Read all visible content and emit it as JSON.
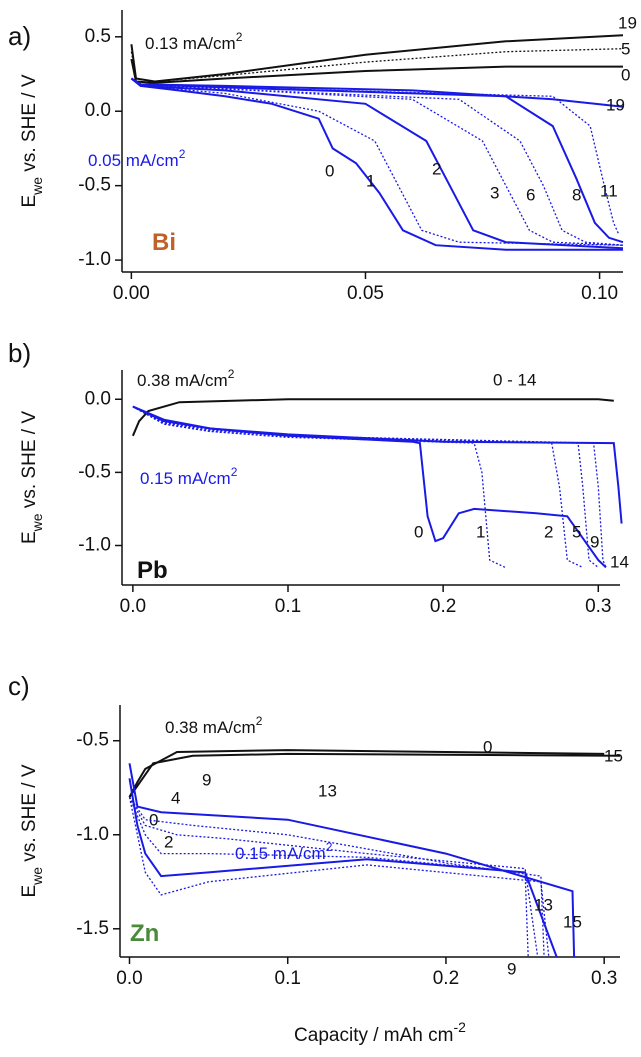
{
  "chart_data": [
    {
      "type": "line",
      "panel": "a)",
      "ylabel": [
        "E",
        "we",
        " vs. SHE / V"
      ],
      "xlim": [
        -0.002,
        0.105
      ],
      "ylim": [
        -1.08,
        0.68
      ],
      "xticks": [
        {
          "value": 0,
          "label": "0.00"
        },
        0.05,
        {
          "value": 0.1,
          "label": "0.10"
        }
      ],
      "yticks": [
        0.5,
        {
          "value": 0,
          "label": "0.0"
        },
        -0.5,
        {
          "value": -1,
          "label": "-1.0"
        }
      ],
      "annotations": [
        {
          "text": "0.13 mA/cm",
          "sup": "2",
          "color": "#111111"
        },
        {
          "text": "0.05 mA/cm",
          "sup": "2",
          "color": "#1a1ae6"
        },
        {
          "text": "Bi",
          "color": "#c0602a"
        }
      ],
      "series": [
        {
          "name": "19",
          "color": "#111111",
          "style": "solid",
          "x": [
            0,
            0.001,
            0.005,
            0.02,
            0.05,
            0.08,
            0.105
          ],
          "values": [
            0.45,
            0.22,
            0.2,
            0.25,
            0.38,
            0.47,
            0.51
          ]
        },
        {
          "name": "5",
          "color": "#111111",
          "style": "dotted",
          "x": [
            0,
            0.001,
            0.005,
            0.02,
            0.05,
            0.08,
            0.105
          ],
          "values": [
            0.4,
            0.22,
            0.2,
            0.24,
            0.33,
            0.4,
            0.42
          ]
        },
        {
          "name": "0",
          "color": "#111111",
          "style": "solid",
          "x": [
            0,
            0.001,
            0.005,
            0.02,
            0.05,
            0.08,
            0.105
          ],
          "values": [
            0.35,
            0.2,
            0.19,
            0.22,
            0.27,
            0.3,
            0.3
          ]
        },
        {
          "name": "0",
          "color": "#1a1ae6",
          "style": "solid",
          "x": [
            0,
            0.002,
            0.01,
            0.02,
            0.03,
            0.04,
            0.043,
            0.048,
            0.053,
            0.058,
            0.065,
            0.08,
            0.105
          ],
          "values": [
            0.22,
            0.17,
            0.14,
            0.1,
            0.05,
            -0.05,
            -0.25,
            -0.35,
            -0.55,
            -0.8,
            -0.9,
            -0.93,
            -0.93
          ]
        },
        {
          "name": "1",
          "color": "#1a1ae6",
          "style": "dotted",
          "x": [
            0,
            0.002,
            0.02,
            0.04,
            0.052,
            0.057,
            0.062,
            0.07,
            0.105
          ],
          "values": [
            0.22,
            0.17,
            0.12,
            0.0,
            -0.2,
            -0.5,
            -0.8,
            -0.88,
            -0.9
          ]
        },
        {
          "name": "2",
          "color": "#1a1ae6",
          "style": "solid",
          "x": [
            0,
            0.002,
            0.02,
            0.05,
            0.063,
            0.068,
            0.073,
            0.08,
            0.105
          ],
          "values": [
            0.22,
            0.17,
            0.14,
            0.05,
            -0.2,
            -0.5,
            -0.8,
            -0.88,
            -0.92
          ]
        },
        {
          "name": "3",
          "color": "#1a1ae6",
          "style": "dotted",
          "x": [
            0,
            0.002,
            0.02,
            0.06,
            0.075,
            0.08,
            0.085,
            0.09,
            0.105
          ],
          "values": [
            0.22,
            0.18,
            0.15,
            0.08,
            -0.2,
            -0.5,
            -0.8,
            -0.88,
            -0.9
          ]
        },
        {
          "name": "6",
          "color": "#1a1ae6",
          "style": "dotted",
          "x": [
            0,
            0.002,
            0.02,
            0.07,
            0.083,
            0.088,
            0.092,
            0.097,
            0.105
          ],
          "values": [
            0.22,
            0.18,
            0.15,
            0.08,
            -0.2,
            -0.5,
            -0.8,
            -0.88,
            -0.9
          ]
        },
        {
          "name": "8",
          "color": "#1a1ae6",
          "style": "solid",
          "x": [
            0,
            0.002,
            0.02,
            0.08,
            0.09,
            0.095,
            0.099,
            0.102,
            0.105
          ],
          "values": [
            0.22,
            0.18,
            0.16,
            0.1,
            -0.1,
            -0.45,
            -0.75,
            -0.85,
            -0.88
          ]
        },
        {
          "name": "11",
          "color": "#1a1ae6",
          "style": "dotted",
          "x": [
            0,
            0.002,
            0.02,
            0.09,
            0.098,
            0.101,
            0.103,
            0.104
          ],
          "values": [
            0.22,
            0.18,
            0.16,
            0.1,
            -0.1,
            -0.5,
            -0.75,
            -0.82
          ]
        },
        {
          "name": "19",
          "color": "#1a1ae6",
          "style": "solid",
          "x": [
            0,
            0.002,
            0.02,
            0.06,
            0.09,
            0.105
          ],
          "values": [
            0.22,
            0.18,
            0.17,
            0.14,
            0.08,
            0.03
          ]
        }
      ]
    },
    {
      "type": "line",
      "panel": "b)",
      "ylabel": [
        "E",
        "we",
        " vs. SHE / V"
      ],
      "xlim": [
        -0.007,
        0.314
      ],
      "ylim": [
        -1.27,
        0.2
      ],
      "xticks": [
        {
          "value": 0,
          "label": "0.0"
        },
        0.1,
        0.2,
        0.3
      ],
      "yticks": [
        {
          "value": 0,
          "label": "0.0"
        },
        -0.5,
        {
          "value": -1,
          "label": "-1.0"
        }
      ],
      "annotations": [
        {
          "text": "0.38 mA/cm",
          "sup": "2",
          "color": "#111111"
        },
        {
          "text": "0.15 mA/cm",
          "sup": "2",
          "color": "#1a1ae6"
        },
        {
          "text": "Pb",
          "color": "#111111"
        }
      ],
      "series": [
        {
          "name": "0 - 14",
          "color": "#111111",
          "style": "solid",
          "x": [
            0,
            0.004,
            0.01,
            0.03,
            0.1,
            0.2,
            0.3,
            0.31
          ],
          "values": [
            -0.25,
            -0.15,
            -0.08,
            -0.02,
            0,
            0,
            0,
            -0.01
          ]
        },
        {
          "name": "0",
          "color": "#1a1ae6",
          "style": "solid",
          "x": [
            0,
            0.02,
            0.05,
            0.1,
            0.18,
            0.185,
            0.19,
            0.195,
            0.2,
            0.21,
            0.22,
            0.26,
            0.28,
            0.29,
            0.3,
            0.305
          ],
          "values": [
            -0.05,
            -0.15,
            -0.2,
            -0.25,
            -0.29,
            -0.3,
            -0.8,
            -0.97,
            -0.95,
            -0.78,
            -0.75,
            -0.78,
            -0.8,
            -0.95,
            -1.1,
            -1.15
          ]
        },
        {
          "name": "1",
          "color": "#1a1ae6",
          "style": "dotted",
          "x": [
            0,
            0.02,
            0.05,
            0.1,
            0.22,
            0.225,
            0.23,
            0.24
          ],
          "values": [
            -0.05,
            -0.17,
            -0.22,
            -0.26,
            -0.3,
            -0.5,
            -1.1,
            -1.15
          ]
        },
        {
          "name": "2",
          "color": "#1a1ae6",
          "style": "dotted",
          "x": [
            0,
            0.02,
            0.05,
            0.1,
            0.27,
            0.275,
            0.28,
            0.29
          ],
          "values": [
            -0.05,
            -0.17,
            -0.22,
            -0.26,
            -0.3,
            -0.6,
            -1.1,
            -1.15
          ]
        },
        {
          "name": "5",
          "color": "#1a1ae6",
          "style": "dotted",
          "x": [
            0,
            0.02,
            0.05,
            0.1,
            0.287,
            0.29,
            0.294,
            0.3
          ],
          "values": [
            -0.05,
            -0.16,
            -0.21,
            -0.25,
            -0.3,
            -0.6,
            -1.1,
            -1.15
          ]
        },
        {
          "name": "9",
          "color": "#1a1ae6",
          "style": "dotted",
          "x": [
            0,
            0.02,
            0.05,
            0.1,
            0.297,
            0.3,
            0.303,
            0.305
          ],
          "values": [
            -0.05,
            -0.16,
            -0.21,
            -0.25,
            -0.3,
            -0.6,
            -1.1,
            -1.15
          ]
        },
        {
          "name": "14",
          "color": "#1a1ae6",
          "style": "solid",
          "x": [
            0,
            0.02,
            0.05,
            0.1,
            0.2,
            0.31,
            0.313,
            0.315
          ],
          "values": [
            -0.05,
            -0.14,
            -0.2,
            -0.24,
            -0.29,
            -0.3,
            -0.6,
            -0.85
          ]
        }
      ]
    },
    {
      "type": "line",
      "panel": "c)",
      "ylabel": [
        "E",
        "we",
        " vs. SHE / V"
      ],
      "xlabel": [
        "Capacity / mAh cm",
        "-2"
      ],
      "xlim": [
        -0.006,
        0.31
      ],
      "ylim": [
        -1.65,
        -0.31
      ],
      "xticks": [
        {
          "value": 0,
          "label": "0.0"
        },
        0.1,
        0.2,
        0.3
      ],
      "yticks": [
        -0.5,
        {
          "value": -1,
          "label": "-1.0"
        },
        -1.5
      ],
      "annotations": [
        {
          "text": "0.38 mA/cm",
          "sup": "2",
          "color": "#111111"
        },
        {
          "text": "0.15 mA/cm",
          "sup": "2",
          "color": "#1a1ae6"
        },
        {
          "text": "Zn",
          "color": "#4a8a3a"
        }
      ],
      "series": [
        {
          "name": "0",
          "color": "#111111",
          "style": "solid",
          "x": [
            0,
            0.005,
            0.01,
            0.03,
            0.1,
            0.2,
            0.3
          ],
          "values": [
            -0.8,
            -0.72,
            -0.65,
            -0.56,
            -0.55,
            -0.56,
            -0.57
          ]
        },
        {
          "name": "15",
          "color": "#111111",
          "style": "solid",
          "x": [
            0,
            0.005,
            0.015,
            0.04,
            0.1,
            0.2,
            0.31
          ],
          "values": [
            -0.8,
            -0.74,
            -0.62,
            -0.58,
            -0.57,
            -0.575,
            -0.58
          ]
        },
        {
          "name": "0",
          "color": "#1a1ae6",
          "style": "solid",
          "x": [
            0,
            0.005,
            0.01,
            0.02,
            0.05,
            0.15,
            0.25,
            0.27
          ],
          "values": [
            -0.7,
            -0.95,
            -1.1,
            -1.22,
            -1.2,
            -1.13,
            -1.2,
            -1.65
          ]
        },
        {
          "name": "2",
          "color": "#1a1ae6",
          "style": "dotted",
          "x": [
            0,
            0.01,
            0.02,
            0.05,
            0.15,
            0.26,
            0.265
          ],
          "values": [
            -0.8,
            -1.2,
            -1.32,
            -1.25,
            -1.16,
            -1.25,
            -1.65
          ]
        },
        {
          "name": "4",
          "color": "#1a1ae6",
          "style": "dotted",
          "x": [
            0,
            0.01,
            0.02,
            0.05,
            0.15,
            0.25,
            0.252
          ],
          "values": [
            -0.8,
            -1.0,
            -1.1,
            -1.1,
            -1.12,
            -1.2,
            -1.65
          ]
        },
        {
          "name": "9",
          "color": "#1a1ae6",
          "style": "dotted",
          "x": [
            0,
            0.01,
            0.03,
            0.06,
            0.15,
            0.25,
            0.258
          ],
          "values": [
            -0.8,
            -0.95,
            -1.0,
            -1.02,
            -1.1,
            -1.18,
            -1.65
          ]
        },
        {
          "name": "13",
          "color": "#1a1ae6",
          "style": "dotted",
          "x": [
            0,
            0.01,
            0.04,
            0.1,
            0.2,
            0.26,
            0.262
          ],
          "values": [
            -0.8,
            -0.92,
            -0.95,
            -1.0,
            -1.15,
            -1.22,
            -1.65
          ]
        },
        {
          "name": "15",
          "color": "#1a1ae6",
          "style": "solid",
          "x": [
            0,
            0.005,
            0.02,
            0.1,
            0.2,
            0.28,
            0.281
          ],
          "values": [
            -0.62,
            -0.85,
            -0.88,
            -0.92,
            -1.1,
            -1.3,
            -1.65
          ]
        }
      ]
    }
  ]
}
